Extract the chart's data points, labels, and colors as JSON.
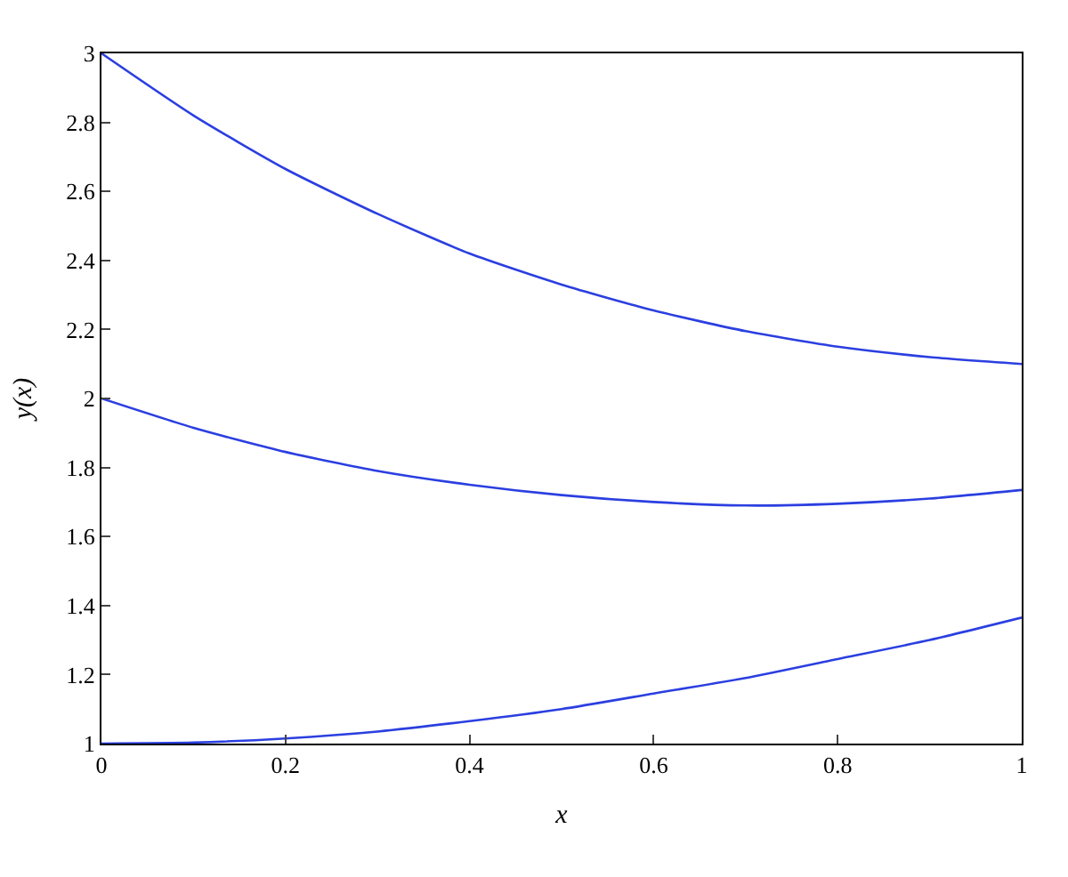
{
  "chart_data": {
    "type": "line",
    "xlabel": "x",
    "ylabel": "y(x)",
    "x": [
      0,
      0.1,
      0.2,
      0.3,
      0.4,
      0.5,
      0.6,
      0.7,
      0.8,
      0.9,
      1
    ],
    "series": [
      {
        "color": "#2b3fe0",
        "values": [
          3,
          2.82,
          2.665,
          2.535,
          2.42,
          2.33,
          2.255,
          2.195,
          2.15,
          2.12,
          2.1
        ]
      },
      {
        "color": "#2b3fe0",
        "values": [
          2,
          1.915,
          1.845,
          1.79,
          1.75,
          1.72,
          1.7,
          1.69,
          1.695,
          1.71,
          1.735
        ]
      },
      {
        "color": "#2b3fe0",
        "values": [
          1,
          1.003,
          1.015,
          1.035,
          1.065,
          1.1,
          1.145,
          1.19,
          1.245,
          1.3,
          1.365
        ]
      }
    ],
    "xlim": [
      0,
      1
    ],
    "xticks": [
      0,
      0.2,
      0.4,
      0.6,
      0.8,
      1
    ],
    "ylim": [
      1,
      3
    ],
    "yticks": [
      1,
      1.2,
      1.4,
      1.6,
      1.8,
      2,
      2.2,
      2.4,
      2.6,
      2.8,
      3
    ],
    "legend": false,
    "marker": "none",
    "line_style": "solid"
  }
}
